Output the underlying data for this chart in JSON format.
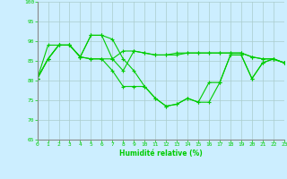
{
  "xlabel": "Humidité relative (%)",
  "bg_color": "#cceeff",
  "grid_color": "#aacccc",
  "line_color": "#00cc00",
  "ylim": [
    65,
    100
  ],
  "xlim": [
    0,
    23
  ],
  "yticks": [
    65,
    70,
    75,
    80,
    85,
    90,
    95,
    100
  ],
  "xticks": [
    0,
    1,
    2,
    3,
    4,
    5,
    6,
    7,
    8,
    9,
    10,
    11,
    12,
    13,
    14,
    15,
    16,
    17,
    18,
    19,
    20,
    21,
    22,
    23
  ],
  "lines": [
    {
      "x": [
        0,
        1,
        2,
        3,
        4,
        5,
        6,
        7,
        8,
        9,
        10,
        11,
        12,
        13,
        14,
        15,
        16,
        17,
        18,
        19,
        20,
        21,
        22,
        23
      ],
      "y": [
        80.5,
        85.5,
        89,
        89,
        86,
        91.5,
        91.5,
        90.5,
        85.5,
        82.5,
        78.5,
        75.5,
        73.5,
        74,
        75.5,
        74.5,
        74.5,
        79.5,
        86.5,
        86.5,
        80.5,
        84.5,
        85.5,
        84.5
      ]
    },
    {
      "x": [
        0,
        1,
        2,
        3,
        4,
        5,
        6,
        7,
        8,
        9,
        10,
        11,
        12,
        13,
        14,
        15,
        16,
        17,
        18,
        19,
        20,
        21,
        22,
        23
      ],
      "y": [
        80.5,
        89,
        89,
        89,
        86,
        91.5,
        91.5,
        85.5,
        87.5,
        87.5,
        87,
        86.5,
        86.5,
        86.5,
        87,
        87,
        87,
        87,
        87,
        87,
        86,
        85.5,
        85.5,
        84.5
      ]
    },
    {
      "x": [
        0,
        1,
        2,
        3,
        4,
        5,
        6,
        7,
        8,
        9,
        10,
        11,
        12,
        13,
        14,
        15,
        16,
        17,
        18,
        19,
        20,
        21,
        22,
        23
      ],
      "y": [
        80.5,
        85.5,
        89,
        89,
        86,
        85.5,
        85.5,
        85.5,
        82.5,
        87.5,
        87,
        86.5,
        86.5,
        87,
        87,
        87,
        87,
        87,
        87,
        87,
        86,
        85.5,
        85.5,
        84.5
      ]
    },
    {
      "x": [
        0,
        1,
        2,
        3,
        4,
        5,
        6,
        7,
        8,
        9,
        10,
        11,
        12,
        13,
        14,
        15,
        16,
        17,
        18,
        19,
        20,
        21,
        22,
        23
      ],
      "y": [
        80.5,
        85.5,
        89,
        89,
        86,
        85.5,
        85.5,
        82.5,
        78.5,
        78.5,
        78.5,
        75.5,
        73.5,
        74,
        75.5,
        74.5,
        79.5,
        79.5,
        86.5,
        86.5,
        80.5,
        84.5,
        85.5,
        84.5
      ]
    }
  ]
}
